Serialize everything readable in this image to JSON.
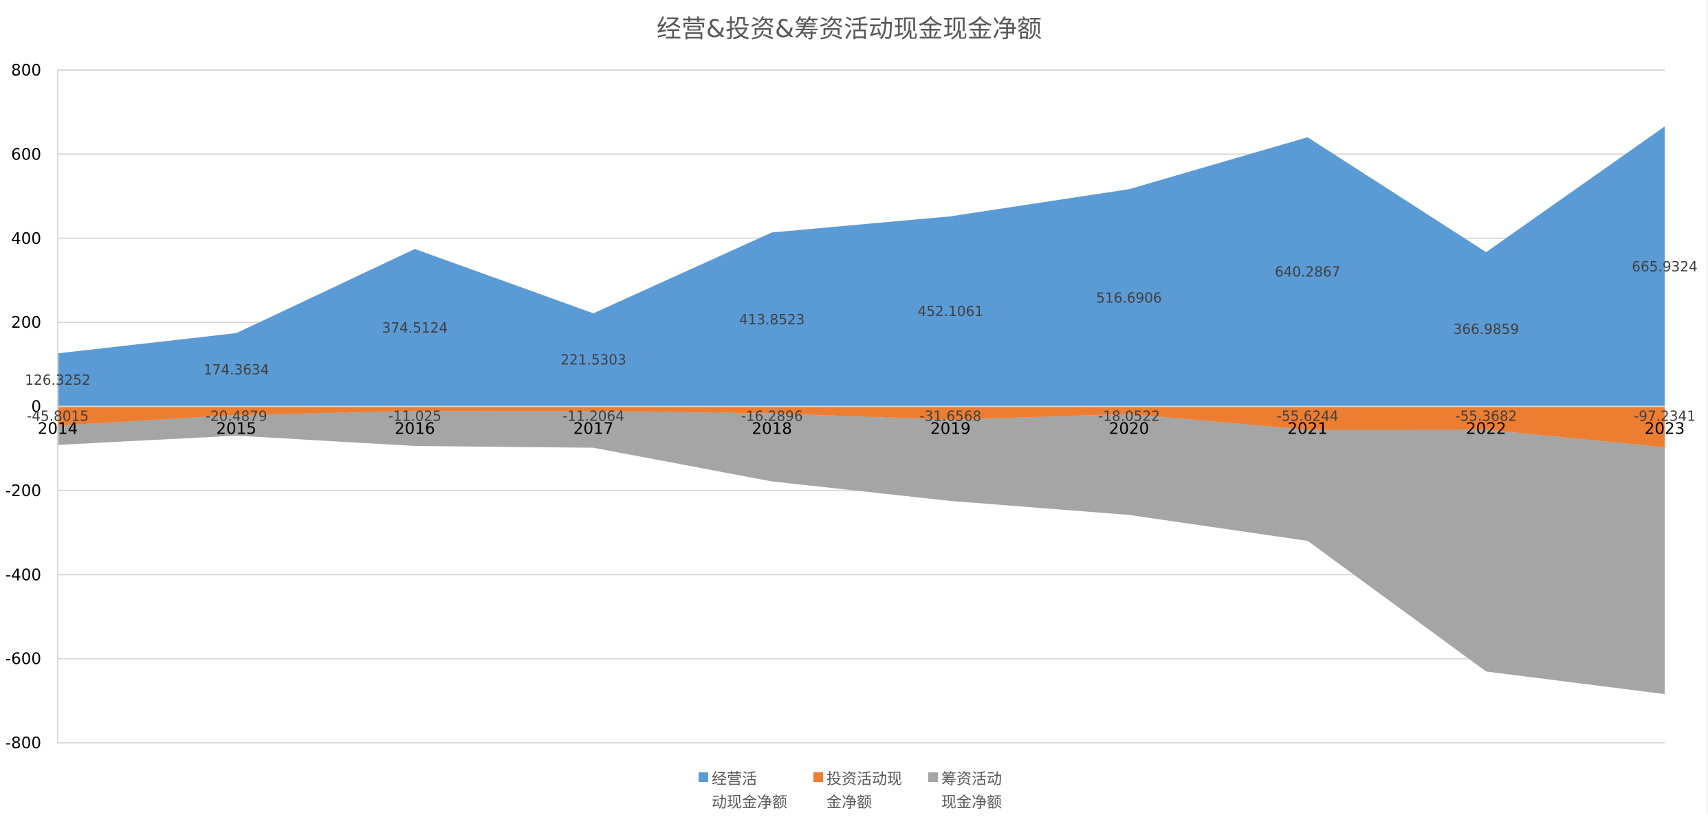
{
  "chart_data": {
    "type": "area",
    "title": "经营&投资&筹资活动现金现金净额",
    "categories": [
      "2014",
      "2015",
      "2016",
      "2017",
      "2018",
      "2019",
      "2020",
      "2021",
      "2022",
      "2023"
    ],
    "ylim": [
      -800,
      800
    ],
    "yticks": [
      800,
      600,
      400,
      200,
      0,
      -200,
      -400,
      -600,
      -800
    ],
    "ytick_labels": [
      "800",
      "600",
      "400",
      "200",
      "0",
      "-200",
      "-400",
      "-600",
      "-800"
    ],
    "stacked": true,
    "grid": true,
    "legend_position": "bottom",
    "series": [
      {
        "name": "经营活动现金净额",
        "legend_lines": [
          "经营活",
          "动现金净额"
        ],
        "color": "#5b9bd5",
        "values": [
          126.3252,
          174.3634,
          374.5124,
          221.5303,
          413.8523,
          452.1061,
          516.6906,
          640.2867,
          366.9859,
          665.9324
        ],
        "labels": [
          "126.3252",
          "174.3634",
          "374.5124",
          "221.5303",
          "413.8523",
          "452.1061",
          "516.6906",
          "640.2867",
          "366.9859",
          "665.9324"
        ]
      },
      {
        "name": "投资活动现金净额",
        "legend_lines": [
          "投资活动现",
          "金净额"
        ],
        "color": "#ed7d31",
        "values": [
          -45.8015,
          -20.4879,
          -11.025,
          -11.2064,
          -16.2896,
          -31.6568,
          -18.0522,
          -55.6244,
          -55.3682,
          -97.2341
        ],
        "labels": [
          "-45.8015",
          "-20.4879",
          "-11.025",
          "-11.2064",
          "-16.2896",
          "-31.6568",
          "-18.0522",
          "-55.6244",
          "-55.3682",
          "-97.2341"
        ]
      },
      {
        "name": "筹资活动现金净额",
        "legend_lines": [
          "筹资活动",
          "现金净额"
        ],
        "color": "#a5a5a5",
        "values": [
          -45.8015,
          -49.0,
          -83.0,
          -87.0,
          -162.0,
          -193.0,
          -240.0,
          -264.0,
          -575.0,
          -587.0
        ],
        "labels": []
      }
    ]
  }
}
